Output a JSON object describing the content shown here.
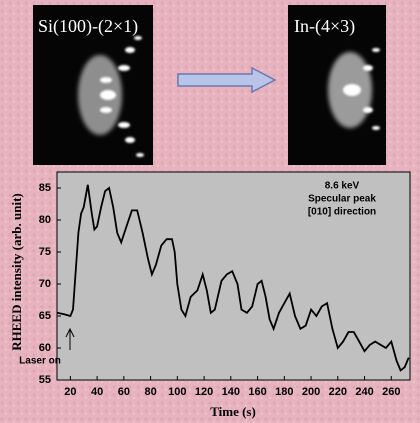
{
  "panels": [
    {
      "label": "Si(100)-(2×1)"
    },
    {
      "label": "In-(4×3)"
    }
  ],
  "chart_data": {
    "type": "line",
    "xlabel": "Time (s)",
    "ylabel": "RHEED intensity (arb. unit)",
    "annotations": [
      "8.6 keV",
      "Specular peak",
      "[010] direction",
      "Laser on"
    ],
    "x": [
      10,
      15,
      20,
      22,
      24,
      26,
      28,
      30,
      33,
      36,
      38,
      40,
      43,
      46,
      49,
      52,
      55,
      58,
      62,
      66,
      70,
      74,
      78,
      81,
      84,
      88,
      92,
      96,
      98,
      100,
      103,
      106,
      110,
      115,
      119,
      122,
      125,
      128,
      133,
      137,
      141,
      145,
      148,
      152,
      156,
      160,
      163,
      166,
      169,
      172,
      176,
      180,
      184,
      188,
      192,
      196,
      200,
      204,
      208,
      212,
      216,
      220,
      224,
      228,
      232,
      236,
      240,
      244,
      248,
      252,
      256,
      260,
      264,
      267,
      270,
      273
    ],
    "series": [
      {
        "name": "Specular peak",
        "color": "#000000",
        "values": [
          65.5,
          65.3,
          65.0,
          66,
          72,
          78,
          81,
          82,
          85.5,
          81,
          78.5,
          79,
          82,
          84.5,
          85,
          82,
          78,
          76.5,
          79,
          81.5,
          81.5,
          78,
          74,
          71.5,
          73,
          76,
          77,
          77,
          75,
          70,
          66,
          65,
          68,
          69,
          71.5,
          69,
          65.5,
          66,
          70.5,
          71.5,
          72,
          70,
          66,
          65.5,
          66.5,
          70,
          70.5,
          68,
          64.5,
          63,
          65.5,
          67,
          68.5,
          65,
          63,
          63.5,
          66,
          65,
          66.5,
          67,
          63,
          60,
          61,
          62.5,
          62.5,
          61,
          59.5,
          60.5,
          61,
          60.5,
          60,
          61,
          58,
          56.5,
          57,
          58.5
        ]
      }
    ],
    "xlim": [
      10,
      274
    ],
    "ylim": [
      55,
      87.5
    ],
    "xticks": [
      20,
      40,
      60,
      80,
      100,
      120,
      140,
      160,
      180,
      200,
      220,
      240,
      260
    ],
    "yticks": [
      55,
      60,
      65,
      70,
      75,
      80,
      85
    ],
    "grid": false
  }
}
